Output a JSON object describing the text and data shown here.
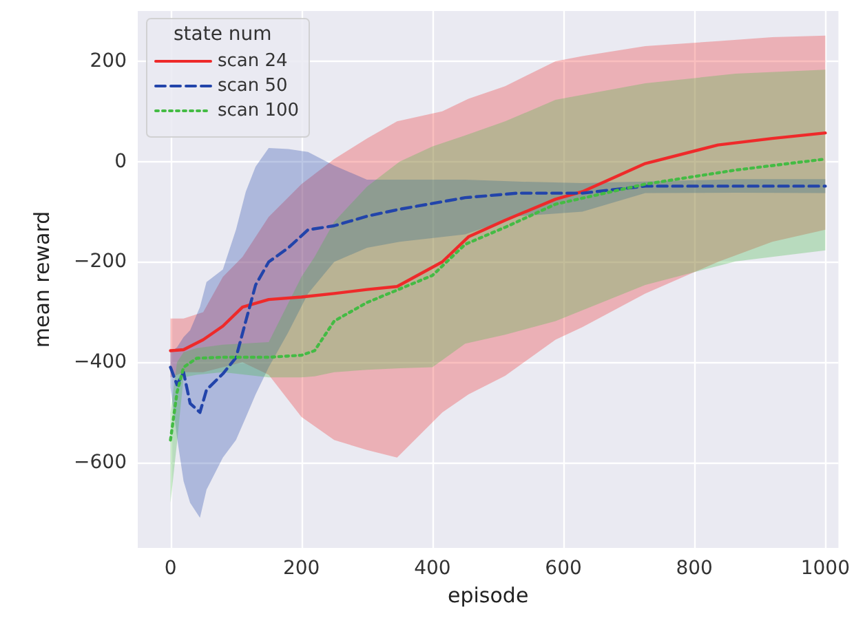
{
  "chart_data": {
    "type": "line",
    "xlabel": "episode",
    "ylabel": "mean reward",
    "legend_title": "state num",
    "legend": "top left",
    "grid": true,
    "marker": "none",
    "xlim": [
      -50,
      1020
    ],
    "xticks": [
      0,
      200,
      400,
      600,
      800,
      1000
    ],
    "ylim": [
      -770,
      300
    ],
    "yticks": [
      {
        "value": -600,
        "label": "−600"
      },
      {
        "value": -400,
        "label": "−400"
      },
      {
        "value": -200,
        "label": "−200"
      },
      0,
      200
    ],
    "series": [
      {
        "name": "scan 24",
        "color": "#ee2a2a",
        "line_style": "solid",
        "x": [
          0,
          20,
          50,
          80,
          110,
          150,
          200,
          250,
          300,
          346,
          415,
          455,
          511,
          588,
          629,
          725,
          836,
          919,
          1000
        ],
        "values": [
          -377,
          -375,
          -355,
          -328,
          -290,
          -275,
          -270,
          -263,
          -255,
          -249,
          -200,
          -150,
          -117,
          -75,
          -60,
          -4,
          33,
          46,
          57
        ],
        "upper": [
          -313,
          -313,
          -300,
          -230,
          -190,
          -110,
          -45,
          5,
          46,
          80,
          100,
          125,
          150,
          200,
          210,
          230,
          240,
          248,
          251
        ],
        "lower": [
          -430,
          -420,
          -420,
          -410,
          -400,
          -425,
          -509,
          -555,
          -575,
          -590,
          -500,
          -464,
          -427,
          -355,
          -330,
          -263,
          -200,
          -160,
          -136
        ]
      },
      {
        "name": "scan 50",
        "color": "#2244aa",
        "line_style": "dashed",
        "x": [
          0,
          10,
          20,
          30,
          45,
          55,
          80,
          100,
          115,
          130,
          150,
          180,
          210,
          250,
          300,
          350,
          450,
          530,
          629,
          725,
          863,
          1000
        ],
        "values": [
          -410,
          -445,
          -420,
          -482,
          -500,
          -455,
          -423,
          -391,
          -318,
          -246,
          -200,
          -172,
          -136,
          -128,
          -109,
          -95,
          -72,
          -63,
          -63,
          -49,
          -49,
          -49
        ],
        "upper": [
          -380,
          -370,
          -350,
          -336,
          -290,
          -240,
          -215,
          -136,
          -60,
          -10,
          27,
          25,
          19,
          -8,
          -36,
          -36,
          -36,
          -40,
          -43,
          -40,
          -35,
          -35
        ],
        "lower": [
          -450,
          -550,
          -637,
          -680,
          -710,
          -654,
          -590,
          -555,
          -510,
          -464,
          -410,
          -340,
          -263,
          -200,
          -172,
          -160,
          -145,
          -109,
          -100,
          -63,
          -62,
          -63
        ]
      },
      {
        "name": "scan 100",
        "color": "#44bb44",
        "line_style": "dotted",
        "x": [
          0,
          10,
          20,
          40,
          80,
          150,
          200,
          220,
          250,
          300,
          350,
          400,
          450,
          511,
          588,
          725,
          863,
          1000
        ],
        "values": [
          -555,
          -460,
          -410,
          -392,
          -390,
          -390,
          -386,
          -377,
          -318,
          -281,
          -254,
          -227,
          -165,
          -131,
          -85,
          -45,
          -17,
          5
        ],
        "upper": [
          -500,
          -400,
          -380,
          -372,
          -365,
          -360,
          -230,
          -190,
          -120,
          -50,
          0,
          30,
          52,
          80,
          123,
          156,
          175,
          183
        ],
        "lower": [
          -680,
          -560,
          -430,
          -425,
          -420,
          -430,
          -430,
          -428,
          -420,
          -415,
          -412,
          -410,
          -363,
          -345,
          -318,
          -246,
          -199,
          -177
        ]
      }
    ]
  }
}
